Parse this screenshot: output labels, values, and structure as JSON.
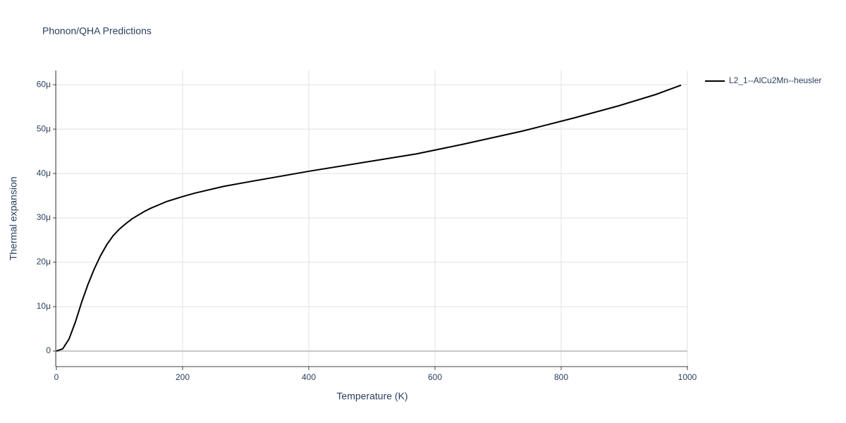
{
  "chart_data": {
    "type": "line",
    "title": "Phonon/QHA Predictions",
    "x_label": "Temperature (K)",
    "y_label": "Thermal expansion",
    "x": [
      0,
      10,
      20,
      30,
      40,
      50,
      60,
      70,
      80,
      90,
      100,
      110,
      120,
      140,
      150,
      175,
      200,
      220,
      265,
      300,
      400,
      500,
      570,
      645,
      740,
      820,
      890,
      950,
      990
    ],
    "series": [
      {
        "name": "L2_1--AlCu2Mn--heusler",
        "color": "#000000",
        "values": [
          0,
          5e-07,
          2.7e-06,
          6.5e-06,
          1.1e-05,
          1.5e-05,
          1.85e-05,
          2.15e-05,
          2.4e-05,
          2.6e-05,
          2.75e-05,
          2.87e-05,
          2.98e-05,
          3.15e-05,
          3.22e-05,
          3.37e-05,
          3.48e-05,
          3.56e-05,
          3.71e-05,
          3.8e-05,
          4.05e-05,
          4.28e-05,
          4.44e-05,
          4.66e-05,
          4.96e-05,
          5.25e-05,
          5.52e-05,
          5.78e-05,
          5.99e-05
        ]
      }
    ],
    "xlim": [
      0,
      1000
    ],
    "xticks": [
      0,
      200,
      400,
      600,
      800,
      1000
    ],
    "ylim": [
      -3.5e-06,
      6.32e-05
    ],
    "yticks": [
      0,
      {
        "value": 1e-05,
        "label": "10μ"
      },
      {
        "value": 2e-05,
        "label": "20μ"
      },
      {
        "value": 3e-05,
        "label": "30μ"
      },
      {
        "value": 4e-05,
        "label": "40μ"
      },
      {
        "value": 5e-05,
        "label": "50μ"
      },
      {
        "value": 6e-05,
        "label": "60μ"
      }
    ],
    "grid": true,
    "legend": "right"
  }
}
